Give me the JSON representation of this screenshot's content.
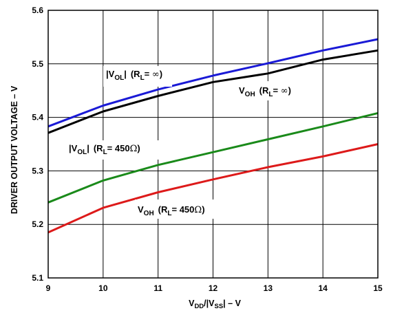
{
  "chart_data": {
    "type": "line",
    "title": "",
    "xlabel": {
      "base": "V",
      "dd_sub": "DD",
      "mid": "/|V",
      "ss_sub": "SS",
      "tail": "| – V"
    },
    "ylabel": "DRIVER OUTPUT VOLTAGE – V",
    "xlim": [
      9,
      15
    ],
    "ylim": [
      5.1,
      5.6
    ],
    "x_ticks": [
      "9",
      "10",
      "11",
      "12",
      "13",
      "14",
      "15"
    ],
    "y_ticks": [
      "5.1",
      "5.2",
      "5.3",
      "5.4",
      "5.5",
      "5.6"
    ],
    "grid": true,
    "series": [
      {
        "color": "#1a1ad6",
        "x": [
          9,
          10,
          11,
          12,
          13,
          14,
          15
        ],
        "y": [
          5.383,
          5.422,
          5.452,
          5.478,
          5.501,
          5.525,
          5.546
        ]
      },
      {
        "color": "#000000",
        "x": [
          9,
          10,
          11,
          12,
          13,
          14,
          15
        ],
        "y": [
          5.371,
          5.411,
          5.44,
          5.466,
          5.482,
          5.508,
          5.525
        ]
      },
      {
        "color": "#1a8a1a",
        "x": [
          9,
          10,
          11,
          12,
          13,
          14,
          15
        ],
        "y": [
          5.241,
          5.282,
          5.311,
          5.335,
          5.359,
          5.383,
          5.408
        ]
      },
      {
        "color": "#dd1a1a",
        "x": [
          9,
          10,
          11,
          12,
          13,
          14,
          15
        ],
        "y": [
          5.185,
          5.231,
          5.26,
          5.284,
          5.307,
          5.327,
          5.35
        ]
      }
    ],
    "annotations": [
      {
        "id": "vol-inf",
        "bar": "|",
        "v": "V",
        "sub": "OL",
        "bar2": "|",
        "paren_open": "(R",
        "rsub": "L",
        "eq": "= ",
        "val": "∞",
        "close": ")"
      },
      {
        "id": "voh-inf",
        "bar": "",
        "v": "V",
        "sub": "OH",
        "bar2": "",
        "paren_open": "(R",
        "rsub": "L",
        "eq": "= ",
        "val": "∞",
        "close": ")"
      },
      {
        "id": "vol-450",
        "bar": "|",
        "v": "V",
        "sub": "OL",
        "bar2": "|",
        "paren_open": "(R",
        "rsub": "L",
        "eq": "= 450",
        "val": "Ω",
        "close": ")"
      },
      {
        "id": "voh-450",
        "bar": "",
        "v": "V",
        "sub": "OH",
        "bar2": "",
        "paren_open": "(R",
        "rsub": "L",
        "eq": "= 450",
        "val": "Ω",
        "close": ")"
      }
    ]
  }
}
